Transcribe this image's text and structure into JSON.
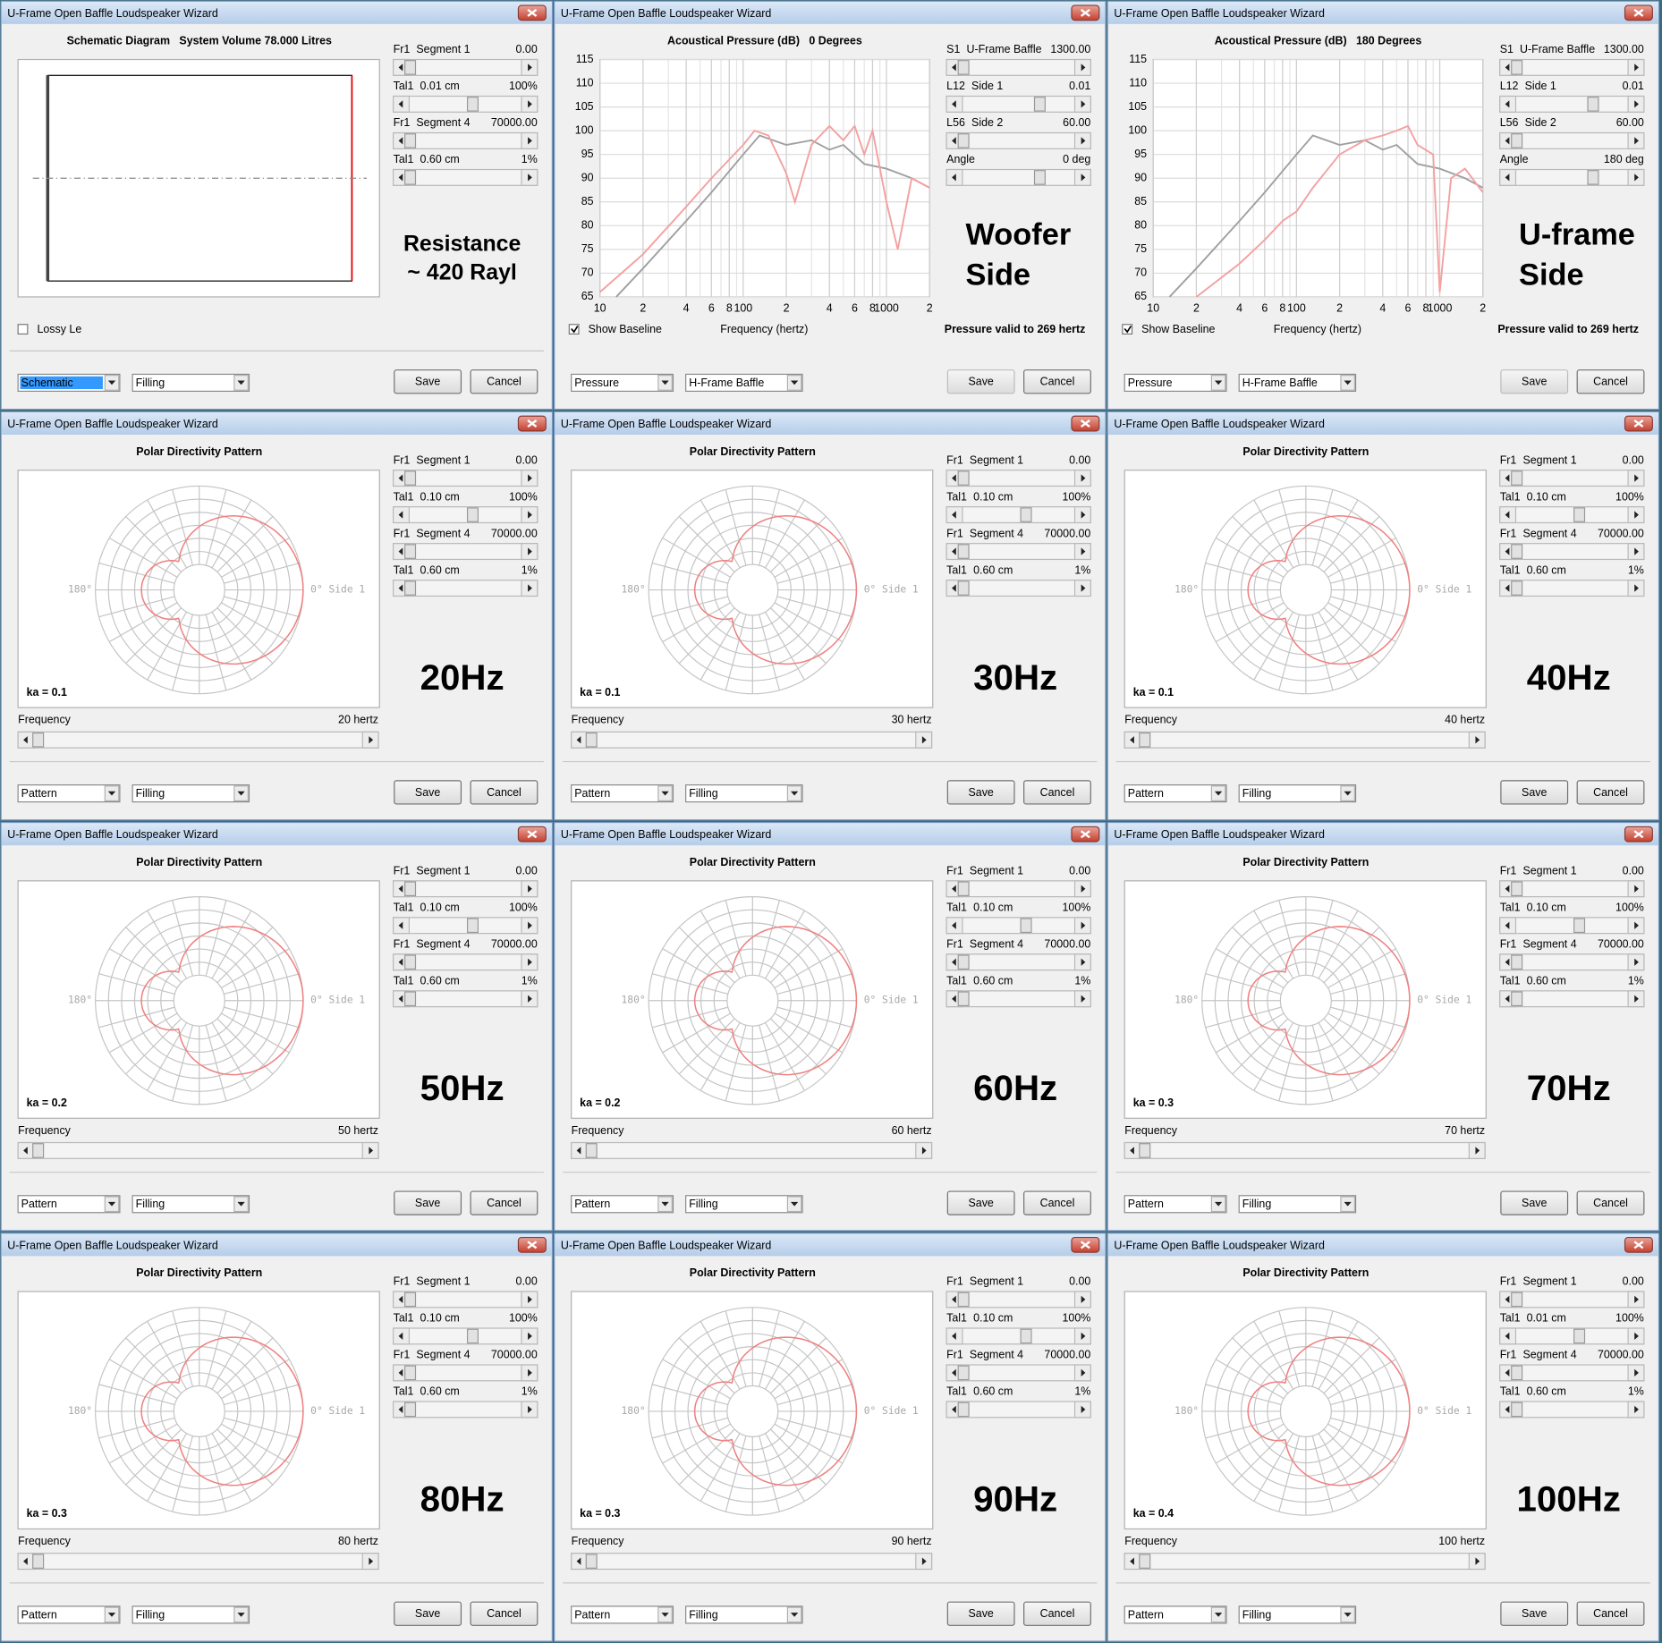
{
  "windows": [
    {
      "type": "schematic",
      "title": "U-Frame Open Baffle Loudspeaker Wizard",
      "heading": "Schematic Diagram   System Volume 78.000 Litres",
      "controls": [
        {
          "label": "Fr1",
          "name": "Segment 1",
          "value": "0.00",
          "color": "#d80000",
          "value_color": "#2040f0"
        },
        {
          "label": "Tal1",
          "name": "0.01 cm",
          "value": "100%",
          "color": "#008000",
          "value_color": "#2040f0"
        },
        {
          "label": "Fr1",
          "name": "Segment 4",
          "value": "70000.00",
          "color": "#d80000",
          "value_color": "#2040f0"
        },
        {
          "label": "Tal1",
          "name": "0.60 cm",
          "value": "1%",
          "color": "#008000",
          "value_color": "#2040f0"
        }
      ],
      "big_label": [
        "Resistance",
        "~ 420 Rayl"
      ],
      "checkbox": "Lossy Le",
      "dropdowns": [
        "Schematic",
        "Filling"
      ],
      "buttons": [
        "Save",
        "Cancel"
      ]
    },
    {
      "type": "pressure",
      "title": "U-Frame Open Baffle Loudspeaker Wizard",
      "controls": [
        {
          "label": "S1",
          "name": "U-Frame Baffle",
          "value": "1300.00",
          "color": "#d80000",
          "value_color": "#2040f0"
        },
        {
          "label": "L12",
          "name": "Side 1",
          "value": "0.01",
          "color": "#d80000",
          "value_color": "#2040f0"
        },
        {
          "label": "L56",
          "name": "Side 2",
          "value": "60.00",
          "color": "#e000e0",
          "value_color": "#2040f0"
        },
        {
          "label": "Angle",
          "name": "",
          "value": "0 deg",
          "color": "#d80000",
          "value_color": "#2040f0"
        }
      ],
      "chart_data": {
        "type": "line",
        "title": "Acoustical Pressure (dB)   0 Degrees",
        "x_label": "Frequency (hertz)",
        "log_x": true,
        "grid": true,
        "xlim": [
          10,
          2000
        ],
        "ylim": [
          65,
          115
        ],
        "xticks": [
          10,
          {
            "value": 20,
            "label": "2"
          },
          {
            "value": 40,
            "label": "4"
          },
          {
            "value": 60,
            "label": "6"
          },
          {
            "value": 80,
            "label": "8"
          },
          100,
          {
            "value": 200,
            "label": "2"
          },
          {
            "value": 400,
            "label": "4"
          },
          {
            "value": 600,
            "label": "6"
          },
          {
            "value": 800,
            "label": "8"
          },
          1000,
          {
            "value": 2000,
            "label": "2"
          }
        ],
        "yticks": [
          65,
          70,
          75,
          80,
          85,
          90,
          95,
          100,
          105,
          110,
          115
        ],
        "series": [
          {
            "color": "#a0a0a0",
            "x": [
              13,
              20,
              40,
              60,
              100,
              130,
              200,
              300,
              400,
              500,
              700,
              1000,
              1500,
              2000
            ],
            "values": [
              65,
              71,
              81,
              87,
              95,
              99,
              97,
              98,
              96,
              97,
              93,
              92,
              90,
              88
            ]
          },
          {
            "color": "#f4a0a0",
            "x": [
              10,
              20,
              40,
              60,
              100,
              120,
              150,
              200,
              230,
              300,
              400,
              500,
              600,
              700,
              800,
              1000,
              1200,
              1500,
              2000
            ],
            "values": [
              66,
              74,
              84,
              90,
              97,
              100,
              99,
              91,
              85,
              97,
              101,
              98,
              101,
              95,
              100,
              85,
              75,
              90,
              88
            ]
          }
        ]
      },
      "checkbox": "Show Baseline",
      "note": "Pressure valid to 269 hertz",
      "big_label": [
        "Woofer",
        "Side"
      ],
      "dropdowns": [
        "Pressure",
        "H-Frame Baffle"
      ],
      "buttons": [
        "Save",
        "Cancel"
      ]
    },
    {
      "type": "pressure",
      "title": "U-Frame Open Baffle Loudspeaker Wizard",
      "controls": [
        {
          "label": "S1",
          "name": "U-Frame Baffle",
          "value": "1300.00",
          "color": "#d80000",
          "value_color": "#2040f0"
        },
        {
          "label": "L12",
          "name": "Side 1",
          "value": "0.01",
          "color": "#d80000",
          "value_color": "#2040f0"
        },
        {
          "label": "L56",
          "name": "Side 2",
          "value": "60.00",
          "color": "#e000e0",
          "value_color": "#2040f0"
        },
        {
          "label": "Angle",
          "name": "",
          "value": "180 deg",
          "color": "#d80000",
          "value_color": "#d80000"
        }
      ],
      "chart_data": {
        "type": "line",
        "title": "Acoustical Pressure (dB)   180 Degrees",
        "x_label": "Frequency (hertz)",
        "log_x": true,
        "grid": true,
        "xlim": [
          10,
          2000
        ],
        "ylim": [
          65,
          115
        ],
        "xticks": [
          10,
          {
            "value": 20,
            "label": "2"
          },
          {
            "value": 40,
            "label": "4"
          },
          {
            "value": 60,
            "label": "6"
          },
          {
            "value": 80,
            "label": "8"
          },
          100,
          {
            "value": 200,
            "label": "2"
          },
          {
            "value": 400,
            "label": "4"
          },
          {
            "value": 600,
            "label": "6"
          },
          {
            "value": 800,
            "label": "8"
          },
          1000,
          {
            "value": 2000,
            "label": "2"
          }
        ],
        "yticks": [
          65,
          70,
          75,
          80,
          85,
          90,
          95,
          100,
          105,
          110,
          115
        ],
        "series": [
          {
            "color": "#a0a0a0",
            "x": [
              13,
              20,
              40,
              60,
              100,
              130,
              200,
              300,
              400,
              500,
              700,
              1000,
              1500,
              2000
            ],
            "values": [
              65,
              71,
              81,
              87,
              95,
              99,
              97,
              98,
              96,
              97,
              93,
              92,
              90,
              88
            ]
          },
          {
            "color": "#f4a0a0",
            "x": [
              20,
              40,
              60,
              80,
              100,
              130,
              200,
              300,
              400,
              500,
              600,
              700,
              900,
              1000,
              1200,
              1500,
              2000
            ],
            "values": [
              65,
              72,
              77,
              81,
              83,
              88,
              95,
              98,
              99,
              100,
              101,
              97,
              95,
              66,
              90,
              92,
              87
            ]
          }
        ]
      },
      "checkbox": "Show Baseline",
      "note": "Pressure valid to 269 hertz",
      "big_label": [
        "U-frame",
        "Side"
      ],
      "dropdowns": [
        "Pressure",
        "H-Frame Baffle"
      ],
      "buttons": [
        "Save",
        "Cancel"
      ]
    },
    {
      "type": "polar",
      "title": "U-Frame Open Baffle Loudspeaker Wizard",
      "heading": "Polar Directivity Pattern",
      "controls": [
        {
          "label": "Fr1",
          "name": "Segment 1",
          "value": "0.00",
          "color": "#d80000",
          "value_color": "#2040f0"
        },
        {
          "label": "Tal1",
          "name": "0.10 cm",
          "value": "100%",
          "color": "#008000",
          "value_color": "#2040f0"
        },
        {
          "label": "Fr1",
          "name": "Segment 4",
          "value": "70000.00",
          "color": "#d80000",
          "value_color": "#d80000"
        },
        {
          "label": "Tal1",
          "name": "0.60 cm",
          "value": "1%",
          "color": "#008000",
          "value_color": "#2040f0"
        }
      ],
      "left_label": "180°",
      "right_label": "0° Side 1",
      "ka": "ka = 0.1",
      "frequency_label": "Frequency",
      "frequency_value": "20 hertz",
      "big_label": [
        "20Hz"
      ],
      "dropdowns": [
        "Pattern",
        "Filling"
      ],
      "buttons": [
        "Save",
        "Cancel"
      ]
    },
    {
      "type": "polar",
      "title": "U-Frame Open Baffle Loudspeaker Wizard",
      "heading": "Polar Directivity Pattern",
      "controls": [
        {
          "label": "Fr1",
          "name": "Segment 1",
          "value": "0.00",
          "color": "#d80000",
          "value_color": "#2040f0"
        },
        {
          "label": "Tal1",
          "name": "0.10 cm",
          "value": "100%",
          "color": "#008000",
          "value_color": "#2040f0"
        },
        {
          "label": "Fr1",
          "name": "Segment 4",
          "value": "70000.00",
          "color": "#d80000",
          "value_color": "#2040f0"
        },
        {
          "label": "Tal1",
          "name": "0.60 cm",
          "value": "1%",
          "color": "#008000",
          "value_color": "#2040f0"
        }
      ],
      "left_label": "180°",
      "right_label": "0° Side 1",
      "ka": "ka = 0.1",
      "frequency_label": "Frequency",
      "frequency_value": "30 hertz",
      "big_label": [
        "30Hz"
      ],
      "dropdowns": [
        "Pattern",
        "Filling"
      ],
      "buttons": [
        "Save",
        "Cancel"
      ]
    },
    {
      "type": "polar",
      "title": "U-Frame Open Baffle Loudspeaker Wizard",
      "heading": "Polar Directivity Pattern",
      "controls": [
        {
          "label": "Fr1",
          "name": "Segment 1",
          "value": "0.00",
          "color": "#d80000",
          "value_color": "#2040f0"
        },
        {
          "label": "Tal1",
          "name": "0.10 cm",
          "value": "100%",
          "color": "#008000",
          "value_color": "#2040f0"
        },
        {
          "label": "Fr1",
          "name": "Segment 4",
          "value": "70000.00",
          "color": "#d80000",
          "value_color": "#2040f0"
        },
        {
          "label": "Tal1",
          "name": "0.60 cm",
          "value": "1%",
          "color": "#008000",
          "value_color": "#2040f0"
        }
      ],
      "left_label": "180°",
      "right_label": "0° Side 1",
      "ka": "ka = 0.1",
      "frequency_label": "Frequency",
      "frequency_value": "40 hertz",
      "big_label": [
        "40Hz"
      ],
      "dropdowns": [
        "Pattern",
        "Filling"
      ],
      "buttons": [
        "Save",
        "Cancel"
      ]
    },
    {
      "type": "polar",
      "title": "U-Frame Open Baffle Loudspeaker Wizard",
      "heading": "Polar Directivity Pattern",
      "controls": [
        {
          "label": "Fr1",
          "name": "Segment 1",
          "value": "0.00",
          "color": "#d80000",
          "value_color": "#2040f0"
        },
        {
          "label": "Tal1",
          "name": "0.10 cm",
          "value": "100%",
          "color": "#008000",
          "value_color": "#2040f0"
        },
        {
          "label": "Fr1",
          "name": "Segment 4",
          "value": "70000.00",
          "color": "#d80000",
          "value_color": "#2040f0"
        },
        {
          "label": "Tal1",
          "name": "0.60 cm",
          "value": "1%",
          "color": "#008000",
          "value_color": "#2040f0"
        }
      ],
      "left_label": "180°",
      "right_label": "0° Side 1",
      "ka": "ka = 0.2",
      "frequency_label": "Frequency",
      "frequency_value": "50 hertz",
      "big_label": [
        "50Hz"
      ],
      "dropdowns": [
        "Pattern",
        "Filling"
      ],
      "buttons": [
        "Save",
        "Cancel"
      ]
    },
    {
      "type": "polar",
      "title": "U-Frame Open Baffle Loudspeaker Wizard",
      "heading": "Polar Directivity Pattern",
      "controls": [
        {
          "label": "Fr1",
          "name": "Segment 1",
          "value": "0.00",
          "color": "#d80000",
          "value_color": "#2040f0"
        },
        {
          "label": "Tal1",
          "name": "0.10 cm",
          "value": "100%",
          "color": "#008000",
          "value_color": "#2040f0"
        },
        {
          "label": "Fr1",
          "name": "Segment 4",
          "value": "70000.00",
          "color": "#d80000",
          "value_color": "#2040f0"
        },
        {
          "label": "Tal1",
          "name": "0.60 cm",
          "value": "1%",
          "color": "#008000",
          "value_color": "#2040f0"
        }
      ],
      "left_label": "180°",
      "right_label": "0° Side 1",
      "ka": "ka = 0.2",
      "frequency_label": "Frequency",
      "frequency_value": "60 hertz",
      "big_label": [
        "60Hz"
      ],
      "dropdowns": [
        "Pattern",
        "Filling"
      ],
      "buttons": [
        "Save",
        "Cancel"
      ]
    },
    {
      "type": "polar",
      "title": "U-Frame Open Baffle Loudspeaker Wizard",
      "heading": "Polar Directivity Pattern",
      "controls": [
        {
          "label": "Fr1",
          "name": "Segment 1",
          "value": "0.00",
          "color": "#d80000",
          "value_color": "#2040f0"
        },
        {
          "label": "Tal1",
          "name": "0.10 cm",
          "value": "100%",
          "color": "#008000",
          "value_color": "#2040f0"
        },
        {
          "label": "Fr1",
          "name": "Segment 4",
          "value": "70000.00",
          "color": "#d80000",
          "value_color": "#2040f0"
        },
        {
          "label": "Tal1",
          "name": "0.60 cm",
          "value": "1%",
          "color": "#008000",
          "value_color": "#2040f0"
        }
      ],
      "left_label": "180°",
      "right_label": "0° Side 1",
      "ka": "ka = 0.3",
      "frequency_label": "Frequency",
      "frequency_value": "70 hertz",
      "big_label": [
        "70Hz"
      ],
      "dropdowns": [
        "Pattern",
        "Filling"
      ],
      "buttons": [
        "Save",
        "Cancel"
      ]
    },
    {
      "type": "polar",
      "title": "U-Frame Open Baffle Loudspeaker Wizard",
      "heading": "Polar Directivity Pattern",
      "controls": [
        {
          "label": "Fr1",
          "name": "Segment 1",
          "value": "0.00",
          "color": "#d80000",
          "value_color": "#2040f0"
        },
        {
          "label": "Tal1",
          "name": "0.10 cm",
          "value": "100%",
          "color": "#008000",
          "value_color": "#2040f0"
        },
        {
          "label": "Fr1",
          "name": "Segment 4",
          "value": "70000.00",
          "color": "#d80000",
          "value_color": "#2040f0"
        },
        {
          "label": "Tal1",
          "name": "0.60 cm",
          "value": "1%",
          "color": "#008000",
          "value_color": "#2040f0"
        }
      ],
      "left_label": "180°",
      "right_label": "0° Side 1",
      "ka": "ka = 0.3",
      "frequency_label": "Frequency",
      "frequency_value": "80 hertz",
      "big_label": [
        "80Hz"
      ],
      "dropdowns": [
        "Pattern",
        "Filling"
      ],
      "buttons": [
        "Save",
        "Cancel"
      ]
    },
    {
      "type": "polar",
      "title": "U-Frame Open Baffle Loudspeaker Wizard",
      "heading": "Polar Directivity Pattern",
      "controls": [
        {
          "label": "Fr1",
          "name": "Segment 1",
          "value": "0.00",
          "color": "#d80000",
          "value_color": "#2040f0"
        },
        {
          "label": "Tal1",
          "name": "0.10 cm",
          "value": "100%",
          "color": "#008000",
          "value_color": "#2040f0"
        },
        {
          "label": "Fr1",
          "name": "Segment 4",
          "value": "70000.00",
          "color": "#d80000",
          "value_color": "#2040f0"
        },
        {
          "label": "Tal1",
          "name": "0.60 cm",
          "value": "1%",
          "color": "#008000",
          "value_color": "#2040f0"
        }
      ],
      "left_label": "180°",
      "right_label": "0° Side 1",
      "ka": "ka = 0.3",
      "frequency_label": "Frequency",
      "frequency_value": "90 hertz",
      "big_label": [
        "90Hz"
      ],
      "dropdowns": [
        "Pattern",
        "Filling"
      ],
      "buttons": [
        "Save",
        "Cancel"
      ]
    },
    {
      "type": "polar",
      "title": "U-Frame Open Baffle Loudspeaker Wizard",
      "heading": "Polar Directivity Pattern",
      "controls": [
        {
          "label": "Fr1",
          "name": "Segment 1",
          "value": "0.00",
          "color": "#d80000",
          "value_color": "#2040f0"
        },
        {
          "label": "Tal1",
          "name": "0.01 cm",
          "value": "100%",
          "color": "#008000",
          "value_color": "#2040f0"
        },
        {
          "label": "Fr1",
          "name": "Segment 4",
          "value": "70000.00",
          "color": "#d80000",
          "value_color": "#2040f0"
        },
        {
          "label": "Tal1",
          "name": "0.60 cm",
          "value": "1%",
          "color": "#008000",
          "value_color": "#2040f0"
        }
      ],
      "left_label": "180°",
      "right_label": "0° Side 1",
      "ka": "ka = 0.4",
      "frequency_label": "Frequency",
      "frequency_value": "100 hertz",
      "big_label": [
        "100Hz"
      ],
      "dropdowns": [
        "Pattern",
        "Filling"
      ],
      "buttons": [
        "Save",
        "Cancel"
      ]
    }
  ]
}
